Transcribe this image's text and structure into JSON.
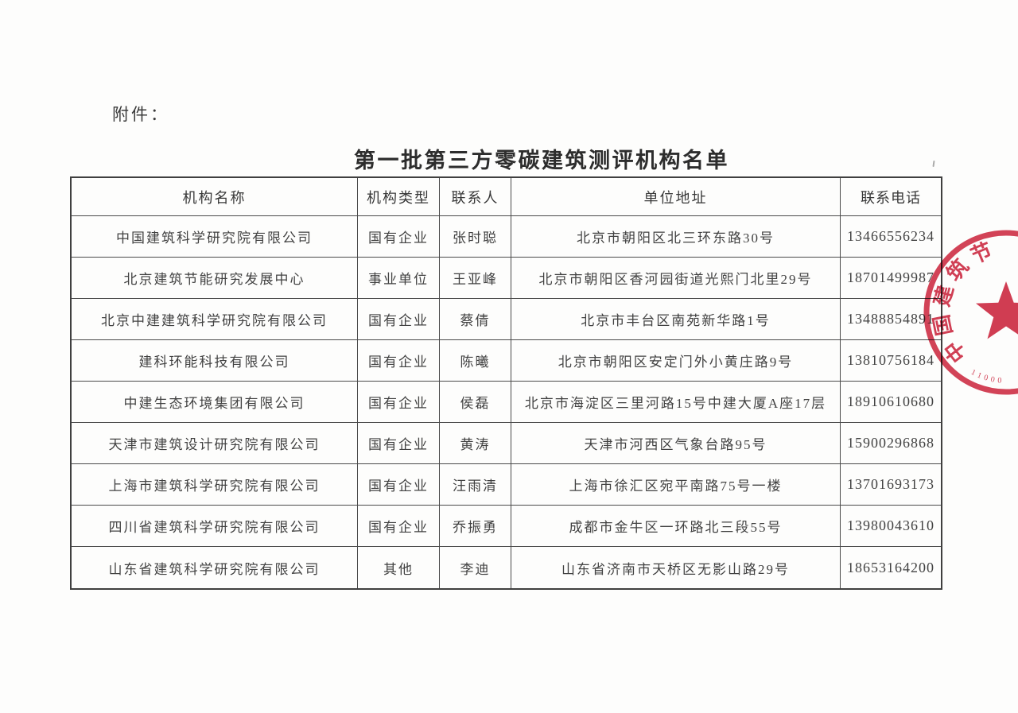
{
  "page": {
    "attachment_label": "附件：",
    "title": "第一批第三方零碳建筑测评机构名单"
  },
  "table": {
    "columns": [
      "机构名称",
      "机构类型",
      "联系人",
      "单位地址",
      "联系电话"
    ],
    "rows": [
      [
        "中国建筑科学研究院有限公司",
        "国有企业",
        "张时聪",
        "北京市朝阳区北三环东路30号",
        "13466556234"
      ],
      [
        "北京建筑节能研究发展中心",
        "事业单位",
        "王亚峰",
        "北京市朝阳区香河园街道光熙门北里29号",
        "18701499987"
      ],
      [
        "北京中建建筑科学研究院有限公司",
        "国有企业",
        "蔡倩",
        "北京市丰台区南苑新华路1号",
        "13488854891"
      ],
      [
        "建科环能科技有限公司",
        "国有企业",
        "陈曦",
        "北京市朝阳区安定门外小黄庄路9号",
        "13810756184"
      ],
      [
        "中建生态环境集团有限公司",
        "国有企业",
        "侯磊",
        "北京市海淀区三里河路15号中建大厦A座17层",
        "18910610680"
      ],
      [
        "天津市建筑设计研究院有限公司",
        "国有企业",
        "黄涛",
        "天津市河西区气象台路95号",
        "15900296868"
      ],
      [
        "上海市建筑科学研究院有限公司",
        "国有企业",
        "汪雨清",
        "上海市徐汇区宛平南路75号一楼",
        "13701693173"
      ],
      [
        "四川省建筑科学研究院有限公司",
        "国有企业",
        "乔振勇",
        "成都市金牛区一环路北三段55号",
        "13980043610"
      ],
      [
        "山东省建筑科学研究院有限公司",
        "其他",
        "李迪",
        "山东省济南市天桥区无影山路29号",
        "18653164200"
      ]
    ]
  },
  "stamp": {
    "visible_text": "中国建筑节",
    "bottom_code": "11000",
    "color": "#d0334a"
  }
}
